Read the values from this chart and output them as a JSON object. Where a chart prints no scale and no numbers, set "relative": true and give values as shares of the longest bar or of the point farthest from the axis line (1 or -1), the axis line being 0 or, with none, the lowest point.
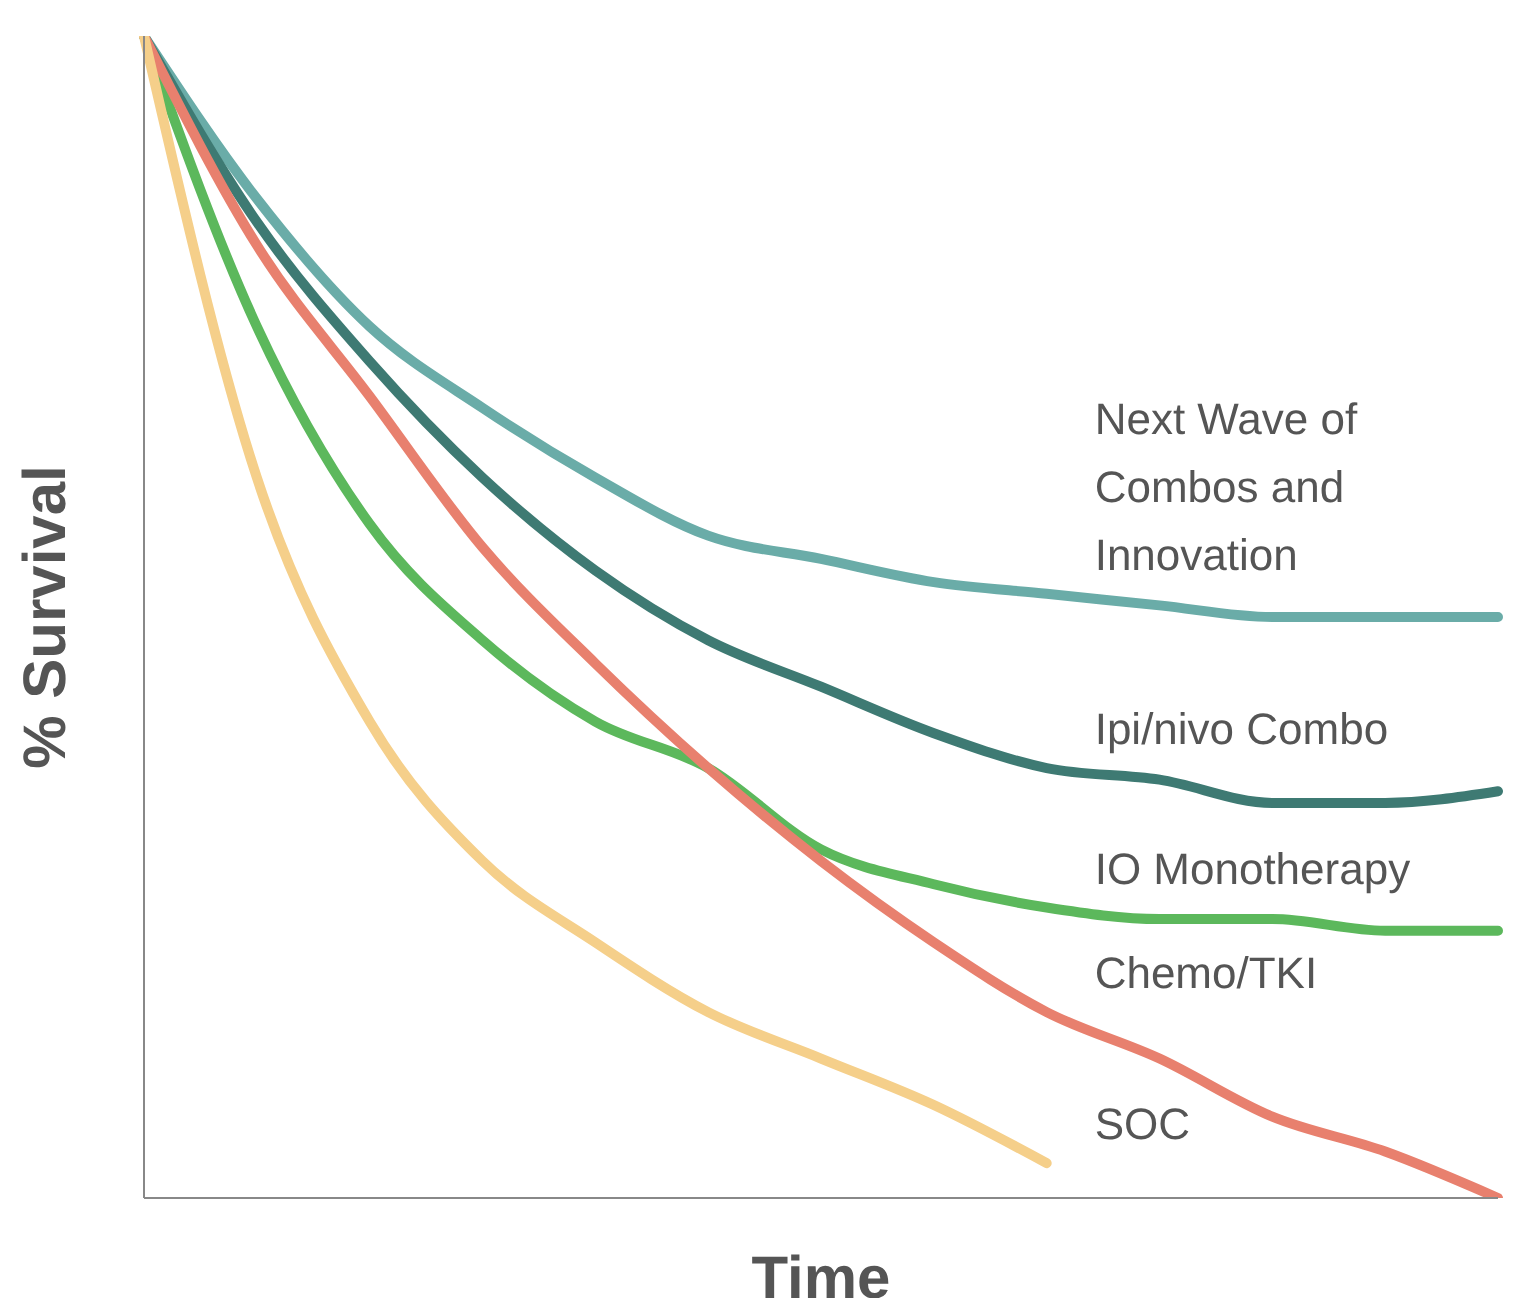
{
  "chart_data": {
    "type": "line",
    "relative": true,
    "xlabel": "Time",
    "ylabel": "% Survival",
    "categories": [
      null,
      null,
      null,
      null,
      null,
      null,
      null,
      null,
      null,
      null,
      null,
      null,
      null
    ],
    "series": [
      {
        "name": "Next Wave of Combos and Innovation",
        "color": "#6aaca8",
        "values": [
          1,
          0.86,
          0.75,
          0.68,
          0.62,
          0.57,
          0.55,
          0.53,
          0.52,
          0.51,
          0.5,
          0.5,
          0.5
        ]
      },
      {
        "name": "Ipi/nivo Combo",
        "color": "#3e7a73",
        "values": [
          1,
          0.84,
          0.72,
          0.62,
          0.54,
          0.48,
          0.44,
          0.4,
          0.37,
          0.36,
          0.34,
          0.34,
          0.35
        ]
      },
      {
        "name": "IO Monotherapy",
        "color": "#5cb85c",
        "values": [
          1,
          0.75,
          0.58,
          0.48,
          0.41,
          0.37,
          0.3,
          0.27,
          0.25,
          0.24,
          0.24,
          0.23,
          0.23
        ]
      },
      {
        "name": "Chemo/TKI",
        "color": "#e8806e",
        "values": [
          1,
          0.82,
          0.69,
          0.56,
          0.46,
          0.37,
          0.29,
          0.22,
          0.16,
          0.12,
          0.07,
          0.04,
          0
        ]
      },
      {
        "name": "SOC",
        "color": "#f5cf8a",
        "values": [
          1,
          0.62,
          0.41,
          0.29,
          0.22,
          0.16,
          0.12,
          0.08,
          0.03,
          null,
          null,
          null,
          null
        ]
      }
    ]
  }
}
